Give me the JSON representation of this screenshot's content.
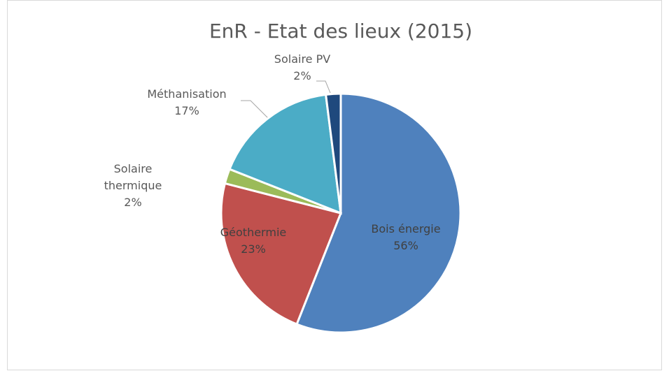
{
  "chart_data": {
    "type": "pie",
    "title": "EnR - Etat des lieux (2015)",
    "categories": [
      "Bois énergie",
      "Géothermie",
      "Solaire thermique",
      "Méthanisation",
      "Solaire PV"
    ],
    "values": [
      56,
      23,
      2,
      17,
      2
    ],
    "value_labels": [
      "56%",
      "23%",
      "2%",
      "17%",
      "2%"
    ],
    "colors": [
      "#4f81bd",
      "#c0504d",
      "#9bbb59",
      "#4bacc6",
      "#1f497d"
    ]
  }
}
